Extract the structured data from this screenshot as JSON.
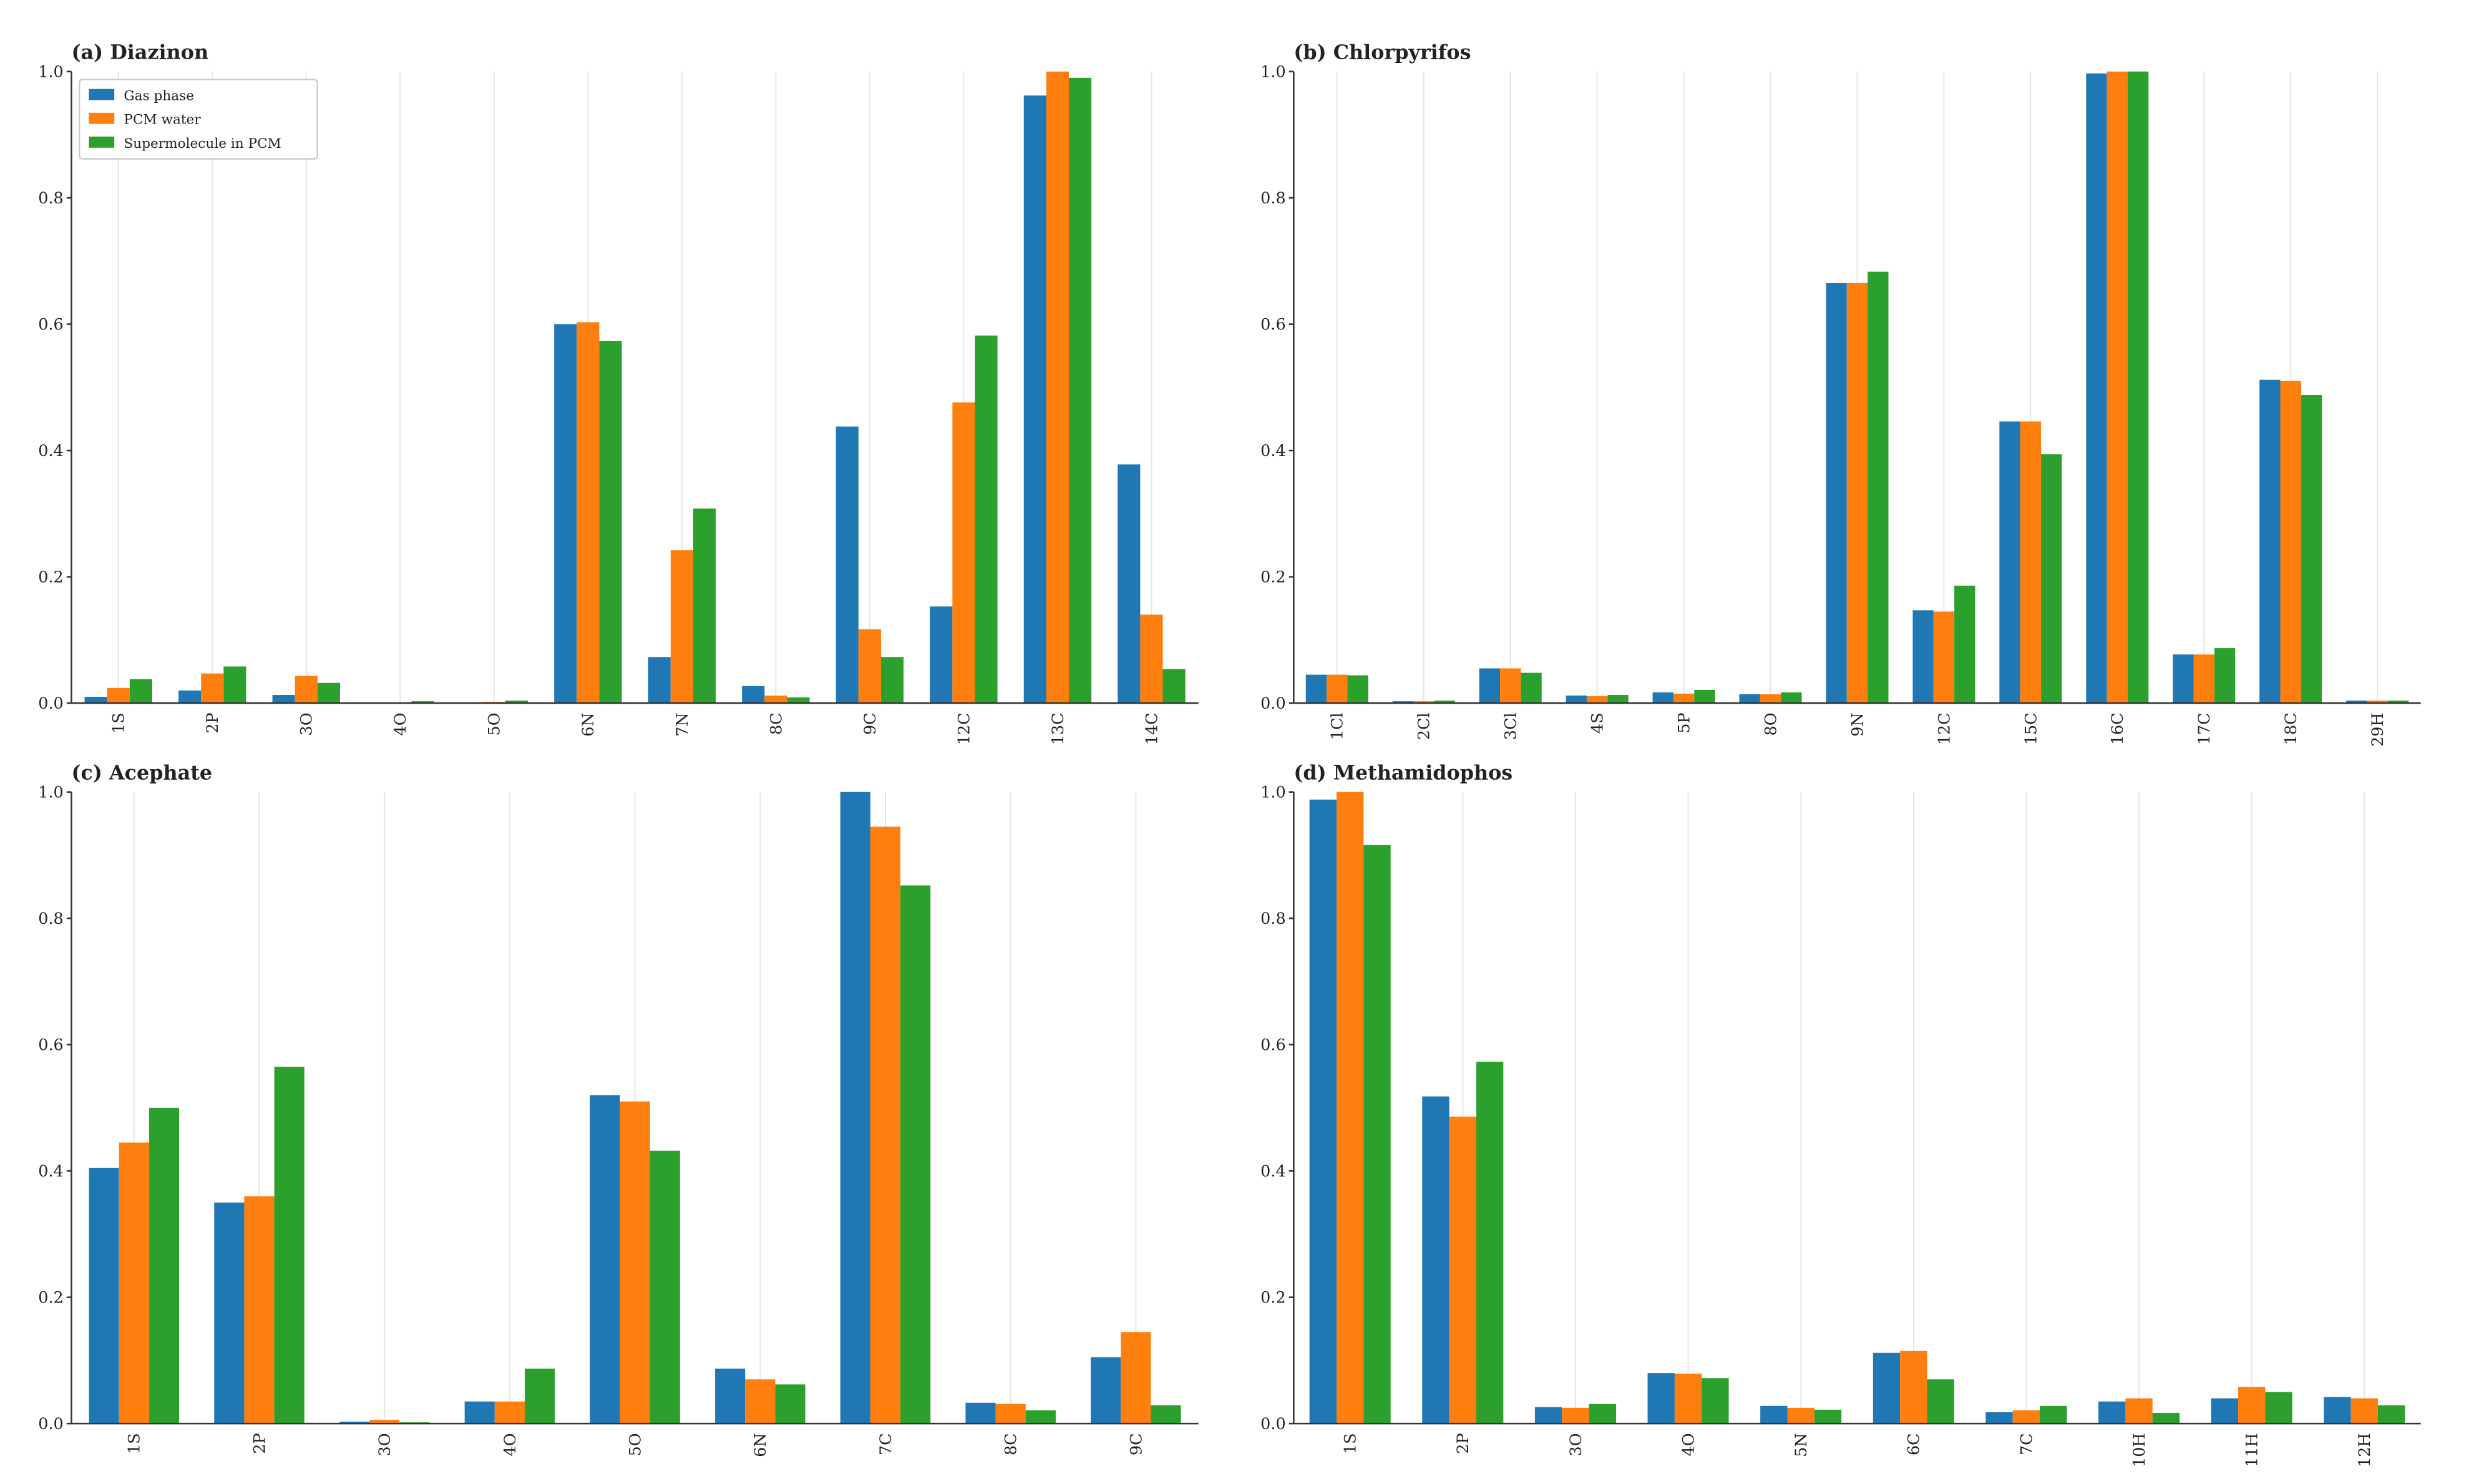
{
  "chart_data": [
    {
      "type": "bar",
      "title": "(a) Diazinon",
      "legend": "upper left",
      "categories": [
        "1S",
        "2P",
        "3O",
        "4O",
        "5O",
        "6N",
        "7N",
        "8C",
        "9C",
        "12C",
        "13C",
        "14C"
      ],
      "series": [
        {
          "name": "Gas phase",
          "color": "#1f77b4",
          "values": [
            0.01,
            0.02,
            0.013,
            0,
            0,
            0.6,
            0.073,
            0.027,
            0.438,
            0.153,
            0.962,
            0.378
          ]
        },
        {
          "name": "PCM water",
          "color": "#ff7f0e",
          "values": [
            0.024,
            0.047,
            0.043,
            0,
            0.002,
            0.603,
            0.242,
            0.012,
            0.117,
            0.476,
            1.0,
            0.14
          ]
        },
        {
          "name": "Supermolecule in PCM",
          "color": "#2ca02c",
          "values": [
            0.038,
            0.058,
            0.032,
            0.003,
            0.004,
            0.573,
            0.308,
            0.009,
            0.073,
            0.582,
            0.99,
            0.054
          ]
        }
      ],
      "ylim": [
        0,
        1
      ],
      "yticks": [
        {
          "value": 0,
          "label": "0.0"
        },
        0.2,
        0.4,
        0.6,
        0.8,
        {
          "value": 1,
          "label": "1.0"
        }
      ],
      "grid": true
    },
    {
      "type": "bar",
      "title": "(b) Chlorpyrifos",
      "categories": [
        "1Cl",
        "2Cl",
        "3Cl",
        "4S",
        "5P",
        "8O",
        "9N",
        "12C",
        "15C",
        "16C",
        "17C",
        "18C",
        "29H"
      ],
      "series": [
        {
          "name": "Gas phase",
          "color": "#1f77b4",
          "values": [
            0.045,
            0.003,
            0.055,
            0.012,
            0.017,
            0.014,
            0.665,
            0.147,
            0.446,
            0.997,
            0.077,
            0.512,
            0.004
          ]
        },
        {
          "name": "PCM water",
          "color": "#ff7f0e",
          "values": [
            0.045,
            0.003,
            0.055,
            0.011,
            0.015,
            0.014,
            0.665,
            0.145,
            0.446,
            1.0,
            0.077,
            0.51,
            0.004
          ]
        },
        {
          "name": "Supermolecule in PCM",
          "color": "#2ca02c",
          "values": [
            0.044,
            0.004,
            0.048,
            0.013,
            0.021,
            0.017,
            0.683,
            0.186,
            0.394,
            1.0,
            0.087,
            0.488,
            0.004
          ]
        }
      ],
      "ylim": [
        0,
        1
      ],
      "yticks": [
        {
          "value": 0,
          "label": "0.0"
        },
        0.2,
        0.4,
        0.6,
        0.8,
        {
          "value": 1,
          "label": "1.0"
        }
      ],
      "grid": true
    },
    {
      "type": "bar",
      "title": "(c) Acephate",
      "categories": [
        "1S",
        "2P",
        "3O",
        "4O",
        "5O",
        "6N",
        "7C",
        "8C",
        "9C"
      ],
      "series": [
        {
          "name": "Gas phase",
          "color": "#1f77b4",
          "values": [
            0.405,
            0.35,
            0.003,
            0.035,
            0.52,
            0.087,
            1.0,
            0.033,
            0.105
          ]
        },
        {
          "name": "PCM water",
          "color": "#ff7f0e",
          "values": [
            0.445,
            0.36,
            0.006,
            0.035,
            0.51,
            0.07,
            0.945,
            0.031,
            0.145
          ]
        },
        {
          "name": "Supermolecule in PCM",
          "color": "#2ca02c",
          "values": [
            0.5,
            0.565,
            0.002,
            0.087,
            0.432,
            0.062,
            0.852,
            0.021,
            0.029
          ]
        }
      ],
      "ylim": [
        0,
        1
      ],
      "yticks": [
        {
          "value": 0,
          "label": "0.0"
        },
        0.2,
        0.4,
        0.6,
        0.8,
        {
          "value": 1,
          "label": "1.0"
        }
      ],
      "grid": true
    },
    {
      "type": "bar",
      "title": "(d) Methamidophos",
      "categories": [
        "1S",
        "2P",
        "3O",
        "4O",
        "5N",
        "6C",
        "7C",
        "10H",
        "11H",
        "12H"
      ],
      "series": [
        {
          "name": "Gas phase",
          "color": "#1f77b4",
          "values": [
            0.988,
            0.518,
            0.026,
            0.08,
            0.028,
            0.112,
            0.018,
            0.035,
            0.04,
            0.042
          ]
        },
        {
          "name": "PCM water",
          "color": "#ff7f0e",
          "values": [
            1.0,
            0.486,
            0.025,
            0.079,
            0.025,
            0.115,
            0.021,
            0.04,
            0.058,
            0.04
          ]
        },
        {
          "name": "Supermolecule in PCM",
          "color": "#2ca02c",
          "values": [
            0.916,
            0.573,
            0.031,
            0.072,
            0.022,
            0.07,
            0.028,
            0.017,
            0.05,
            0.029
          ]
        }
      ],
      "ylim": [
        0,
        1
      ],
      "yticks": [
        {
          "value": 0,
          "label": "0.0"
        },
        0.2,
        0.4,
        0.6,
        0.8,
        {
          "value": 1,
          "label": "1.0"
        }
      ],
      "grid": true
    }
  ]
}
